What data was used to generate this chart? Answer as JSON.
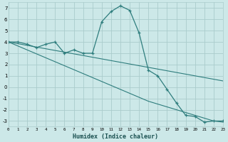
{
  "xlabel": "Humidex (Indice chaleur)",
  "bg_color": "#cce8e8",
  "grid_color": "#aacccc",
  "line_color": "#2e7d7d",
  "x_all": [
    0,
    1,
    2,
    3,
    4,
    5,
    6,
    7,
    8,
    9,
    10,
    11,
    12,
    13,
    14,
    15,
    16,
    17,
    18,
    19,
    20,
    21,
    22,
    23
  ],
  "y_curve": [
    4.0,
    4.0,
    3.8,
    3.5,
    3.8,
    4.0,
    3.0,
    3.3,
    3.0,
    3.0,
    5.8,
    6.7,
    7.2,
    6.8,
    4.8,
    1.5,
    1.0,
    -0.2,
    -1.4,
    -2.5,
    -2.6,
    -3.1,
    -3.0,
    -3.0
  ],
  "y_line_top": [
    4.0,
    3.85,
    3.7,
    3.55,
    3.4,
    3.25,
    3.1,
    2.95,
    2.8,
    2.65,
    2.5,
    2.35,
    2.2,
    2.05,
    1.9,
    1.75,
    1.6,
    1.45,
    1.3,
    1.15,
    1.0,
    0.85,
    0.7,
    0.55
  ],
  "y_line_bot": [
    4.0,
    3.65,
    3.3,
    2.95,
    2.6,
    2.25,
    1.9,
    1.55,
    1.2,
    0.85,
    0.5,
    0.15,
    -0.2,
    -0.55,
    -0.9,
    -1.25,
    -1.5,
    -1.75,
    -2.0,
    -2.25,
    -2.5,
    -2.75,
    -3.0,
    -3.1
  ],
  "xlim": [
    0,
    23
  ],
  "ylim": [
    -3.5,
    7.5
  ],
  "yticks": [
    -3,
    -2,
    -1,
    0,
    1,
    2,
    3,
    4,
    5,
    6,
    7
  ],
  "xticks": [
    0,
    1,
    2,
    3,
    4,
    5,
    6,
    7,
    8,
    9,
    10,
    11,
    12,
    13,
    14,
    15,
    16,
    17,
    18,
    19,
    20,
    21,
    22,
    23
  ],
  "xtick_labels": [
    "0",
    "1",
    "2",
    "3",
    "4",
    "5",
    "6",
    "7",
    "8",
    "9",
    "10",
    "11",
    "12",
    "13",
    "14",
    "15",
    "16",
    "17",
    "18",
    "19",
    "20",
    "21",
    "22",
    "23"
  ]
}
